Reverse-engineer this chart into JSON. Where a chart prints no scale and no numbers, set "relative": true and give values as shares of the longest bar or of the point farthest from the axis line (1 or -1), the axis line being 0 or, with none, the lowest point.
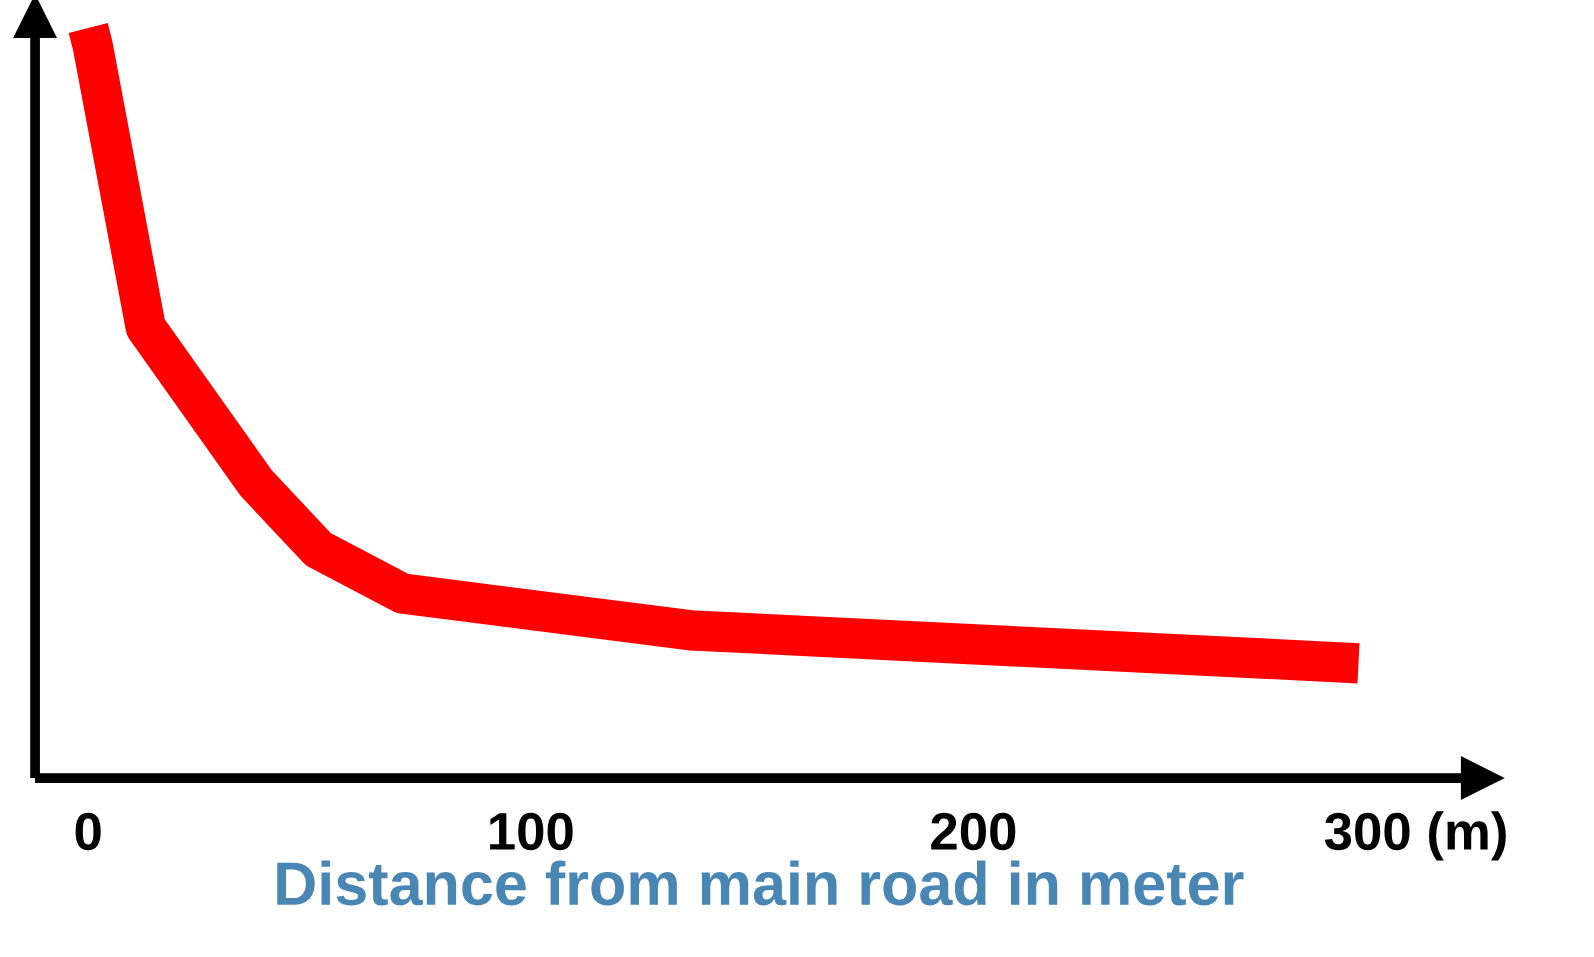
{
  "chart_data": {
    "type": "line",
    "relative": true,
    "xlabel": "Distance from main road in meter",
    "x": [
      0,
      1,
      13,
      38,
      52,
      71,
      136,
      287
    ],
    "series": [
      {
        "color": "#ff0000",
        "values": [
          1,
          0.977,
          0.601,
          0.393,
          0.305,
          0.246,
          0.197,
          0.153
        ]
      }
    ],
    "xlim": [
      -12,
      315
    ],
    "xticks": [
      0,
      100,
      200,
      {
        "value": 300,
        "label": "300 (m)"
      }
    ],
    "grid": false,
    "marker": "none",
    "line_style": "solid"
  }
}
